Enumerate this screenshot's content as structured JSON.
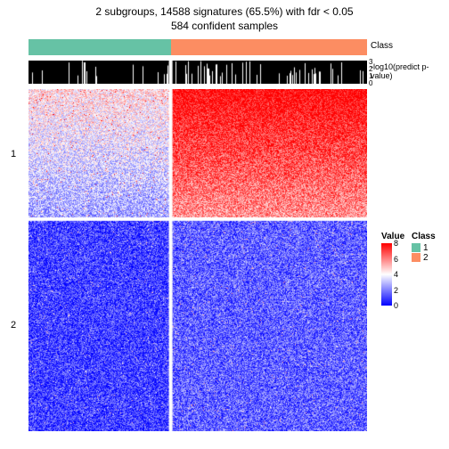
{
  "title": {
    "line1": "2 subgroups, 14588 signatures (65.5%) with fdr < 0.05",
    "line2": "584 confident samples",
    "fontsize": 12
  },
  "class_annotation": {
    "label": "Class",
    "segments": [
      {
        "fraction": 0.42,
        "color": "#66c2a5"
      },
      {
        "fraction": 0.58,
        "color": "#fc8d62"
      }
    ]
  },
  "pvalue_annotation": {
    "label": "-log10(predict p-value)",
    "background": "#000000",
    "stripe_color": "#ffffff",
    "axis_ticks": [
      0,
      1,
      2,
      3
    ]
  },
  "row_groups": [
    {
      "label": "1",
      "fraction": 0.38
    },
    {
      "label": "2",
      "fraction": 0.62
    }
  ],
  "col_split": 0.42,
  "heatmap": {
    "type": "heatmap",
    "width_cells": 190,
    "height_cells": 192,
    "colorscale": {
      "low": "#0000ff",
      "mid": "#ffffff",
      "high": "#ff0000",
      "min": 0,
      "midpoint": 4,
      "max": 8
    },
    "background": "#ffffff"
  },
  "value_legend": {
    "title": "Value",
    "ticks": [
      8,
      6,
      4,
      2,
      0
    ],
    "gradient": [
      "#ff0000",
      "#ffffff",
      "#0000ff"
    ]
  },
  "class_legend": {
    "title": "Class",
    "items": [
      {
        "label": "1",
        "color": "#66c2a5"
      },
      {
        "label": "2",
        "color": "#fc8d62"
      }
    ]
  }
}
